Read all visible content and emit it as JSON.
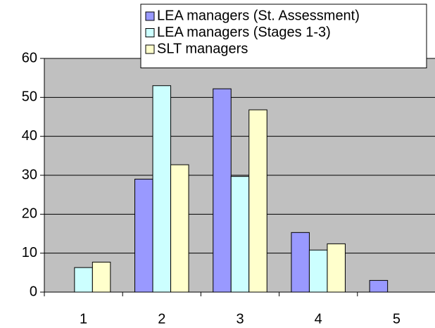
{
  "chart_data": {
    "type": "bar",
    "categories": [
      "1",
      "2",
      "3",
      "4",
      "5"
    ],
    "series": [
      {
        "name": "LEA managers (St. Assessment)",
        "color": "#9999ff",
        "values": [
          0,
          29,
          52.2,
          15.3,
          3
        ]
      },
      {
        "name": "LEA managers (Stages 1-3)",
        "color": "#ccffff",
        "values": [
          6.3,
          53,
          29.7,
          10.8,
          0
        ]
      },
      {
        "name": "SLT managers",
        "color": "#ffffcc",
        "values": [
          7.7,
          32.7,
          46.8,
          12.4,
          0
        ]
      }
    ],
    "ylim": [
      0,
      60
    ],
    "yticks": [
      0,
      10,
      20,
      30,
      40,
      50,
      60
    ],
    "grid": true,
    "plot_background": "#c0c0c0",
    "legend": "upper right"
  }
}
